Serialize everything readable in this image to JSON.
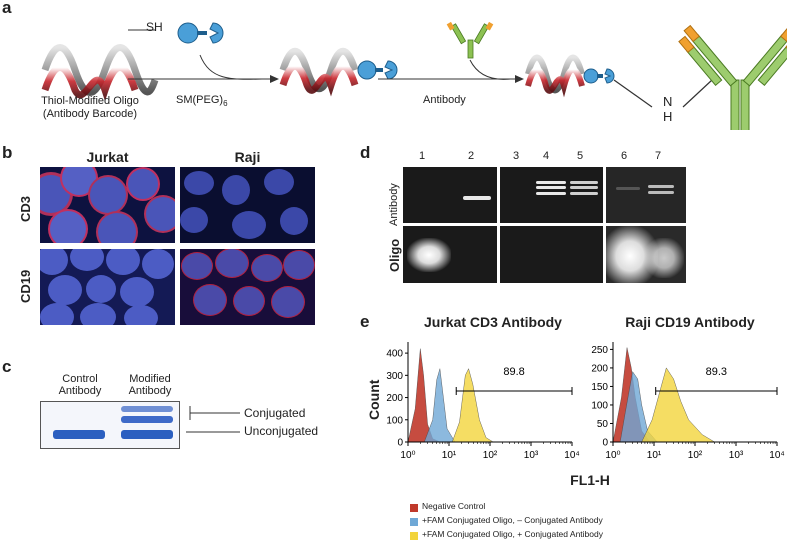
{
  "panel_a": {
    "label": "a",
    "sh_label": "SH",
    "oligo_caption_line1": "Thiol-Modified Oligo",
    "oligo_caption_line2": "(Antibody Barcode)",
    "linker_label": "SM(PEG)",
    "linker_subscript": "6",
    "antibody_label": "Antibody",
    "n_label": "N",
    "h_label": "H"
  },
  "panel_b": {
    "label": "b",
    "col_headers": [
      "Jurkat",
      "Raji"
    ],
    "row_headers": [
      "CD3",
      "CD19"
    ]
  },
  "panel_c": {
    "label": "c",
    "lane1_line1": "Control",
    "lane1_line2": "Antibody",
    "lane2_line1": "Modified",
    "lane2_line2": "Antibody",
    "conjugated_label": "Conjugated",
    "unconjugated_label": "Unconjugated"
  },
  "panel_d": {
    "label": "d",
    "lanes": [
      "1",
      "2",
      "3",
      "4",
      "5",
      "6",
      "7"
    ],
    "row_labels": [
      "Antibody",
      "Oligo"
    ]
  },
  "panel_e": {
    "label": "e",
    "xlabel": "FL1-H",
    "ylabel": "Count",
    "legend": [
      {
        "name": "Negative Control",
        "color": "#c0392b"
      },
      {
        "name": "+FAM Conjugated Oligo, – Conjugated Antibody",
        "color": "#6fa8d6"
      },
      {
        "name": "+FAM Conjugated Oligo, + Conjugated Antibody",
        "color": "#f2d43c"
      }
    ]
  },
  "chart_data": [
    {
      "type": "area",
      "title": "Jurkat CD3 Antibody",
      "xlabel": "FL1-H",
      "ylabel": "Count",
      "xscale": "log",
      "xlim": [
        1,
        10000
      ],
      "ylim": [
        0,
        450
      ],
      "yticks": [
        0,
        100,
        200,
        300,
        400
      ],
      "xticks": [
        "10⁰",
        "10¹",
        "10²",
        "10³",
        "10⁴"
      ],
      "gate_label": "89.8",
      "gate_range": [
        15,
        10000
      ],
      "series": [
        {
          "name": "Negative Control",
          "color": "#c0392b",
          "x": [
            1,
            1.5,
            2,
            2.4,
            3,
            4,
            6
          ],
          "y": [
            0,
            150,
            420,
            300,
            80,
            15,
            0
          ]
        },
        {
          "name": "+FAM Conjugated Oligo, – Conjugated Antibody",
          "color": "#6fa8d6",
          "x": [
            2.5,
            4,
            5,
            6,
            7,
            9,
            14
          ],
          "y": [
            0,
            100,
            280,
            330,
            230,
            60,
            0
          ]
        },
        {
          "name": "+FAM Conjugated Oligo, + Conjugated Antibody",
          "color": "#f2d43c",
          "x": [
            12,
            18,
            25,
            30,
            38,
            55,
            80,
            120
          ],
          "y": [
            0,
            90,
            300,
            330,
            260,
            100,
            20,
            0
          ]
        }
      ]
    },
    {
      "type": "area",
      "title": "Raji CD19 Antibody",
      "xlabel": "FL1-H",
      "ylabel": "Count",
      "xscale": "log",
      "xlim": [
        1,
        10000
      ],
      "ylim": [
        0,
        270
      ],
      "yticks": [
        0,
        50,
        100,
        150,
        200,
        250
      ],
      "xticks": [
        "10⁰",
        "10¹",
        "10²",
        "10³",
        "10⁴"
      ],
      "gate_label": "89.3",
      "gate_range": [
        11,
        10000
      ],
      "series": [
        {
          "name": "Negative Control",
          "color": "#c0392b",
          "x": [
            1,
            1.6,
            2.2,
            2.8,
            3.5,
            5,
            8
          ],
          "y": [
            0,
            120,
            255,
            200,
            120,
            30,
            0
          ]
        },
        {
          "name": "+FAM Conjugated Oligo, – Conjugated Antibody",
          "color": "#6fa8d6",
          "x": [
            1.5,
            2,
            3,
            4,
            5,
            7,
            12
          ],
          "y": [
            0,
            80,
            190,
            170,
            100,
            30,
            0
          ]
        },
        {
          "name": "+FAM Conjugated Oligo, + Conjugated Antibody",
          "color": "#f2d43c",
          "x": [
            5,
            9,
            15,
            20,
            30,
            45,
            70,
            150,
            300
          ],
          "y": [
            0,
            60,
            150,
            200,
            170,
            110,
            60,
            20,
            0
          ]
        }
      ]
    }
  ]
}
